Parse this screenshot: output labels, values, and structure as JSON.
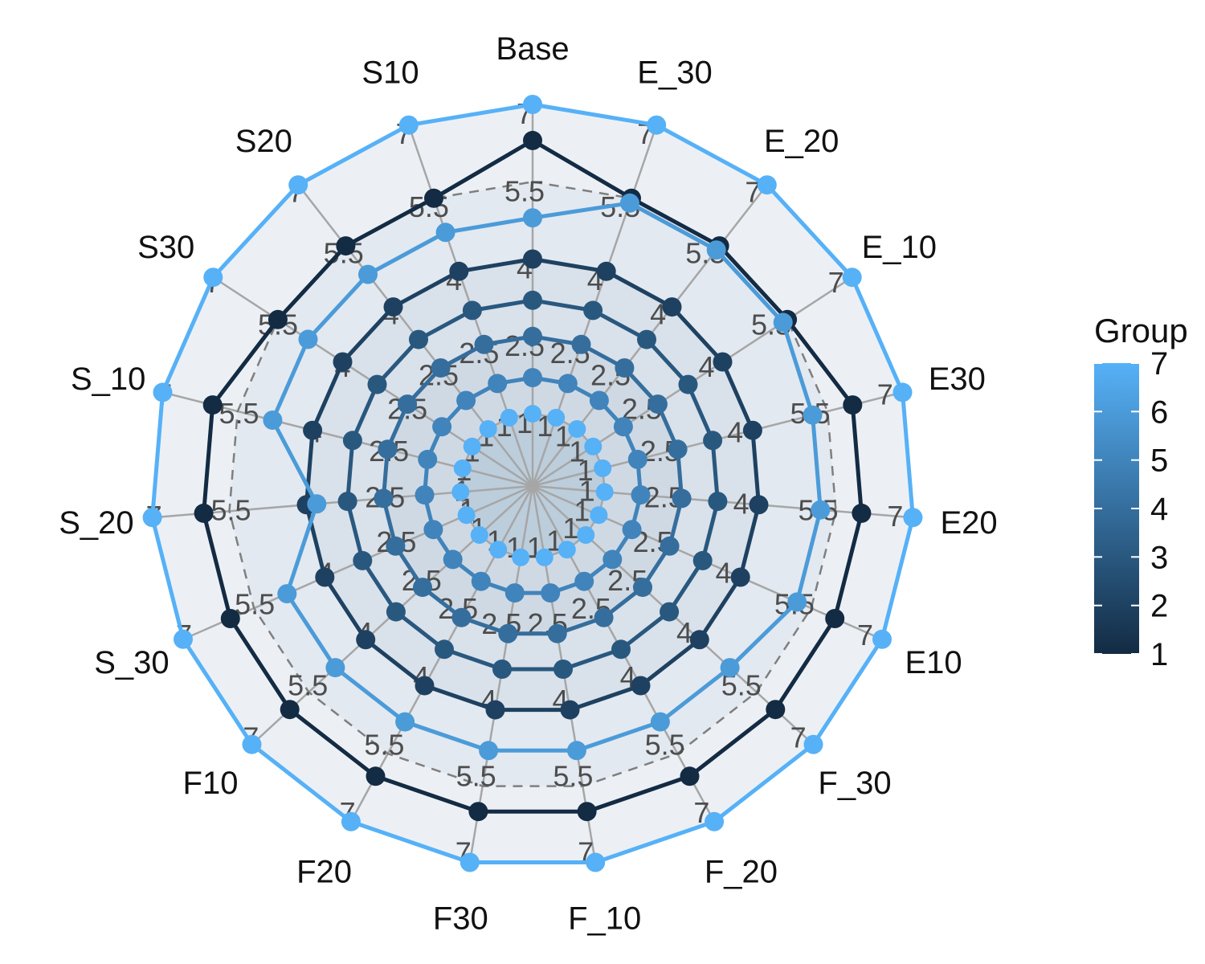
{
  "chart_data": {
    "type": "radar",
    "axes": [
      "Base",
      "E_30",
      "E_20",
      "E_10",
      "E30",
      "E20",
      "E10",
      "F_30",
      "F_20",
      "F_10",
      "F30",
      "F20",
      "F10",
      "S_30",
      "S_20",
      "S_10",
      "S30",
      "S20",
      "S10"
    ],
    "grid_levels": [
      1,
      2.5,
      4,
      5.5,
      7
    ],
    "grid_labels": [
      "1",
      "2.5",
      "4",
      "5.5",
      "7"
    ],
    "dashed_grid_level": 5.5,
    "rlim": [
      0,
      7
    ],
    "series": [
      {
        "group": 1,
        "values": [
          6.3,
          5.5,
          5.5,
          5.5,
          6.0,
          6.0,
          6.0,
          6.0,
          6.0,
          6.0,
          6.0,
          6.0,
          6.0,
          6.0,
          6.0,
          6.0,
          5.5,
          5.5,
          5.5
        ]
      },
      {
        "group": 2,
        "values": [
          4,
          4,
          4,
          4,
          4,
          4,
          4,
          4,
          4,
          4,
          4,
          4,
          4,
          4,
          4,
          4,
          4,
          4,
          4
        ]
      },
      {
        "group": 3,
        "values": [
          3.2,
          3.2,
          3.2,
          3.2,
          3.2,
          3.2,
          3.2,
          3.2,
          3.2,
          3.2,
          3.2,
          3.2,
          3.2,
          3.2,
          3.2,
          3.2,
          3.2,
          3.2,
          3.2
        ]
      },
      {
        "group": 4,
        "values": [
          2.5,
          2.5,
          2.5,
          2.5,
          2.5,
          2.5,
          2.5,
          2.5,
          2.5,
          2.5,
          2.5,
          2.5,
          2.5,
          2.5,
          2.5,
          2.5,
          2.5,
          2.5,
          2.5
        ]
      },
      {
        "group": 5,
        "values": [
          1.7,
          1.7,
          1.7,
          1.7,
          1.7,
          1.7,
          1.7,
          1.7,
          1.7,
          1.7,
          1.7,
          1.7,
          1.7,
          1.7,
          1.7,
          1.7,
          1.7,
          1.7,
          1.7
        ]
      },
      {
        "group": 6,
        "values": [
          4.8,
          5.4,
          5.4,
          5.4,
          5.2,
          5.2,
          5.2,
          4.8,
          4.8,
          4.8,
          4.8,
          4.8,
          4.8,
          4.8,
          3.8,
          4.8,
          4.8,
          4.8,
          4.8
        ]
      },
      {
        "group": 7,
        "values": [
          7,
          7,
          7,
          7,
          7,
          7,
          7,
          7,
          7,
          7,
          7,
          7,
          7,
          7,
          7,
          7,
          7,
          7,
          7
        ]
      }
    ],
    "center_group_value": 1,
    "legend": {
      "title": "Group",
      "ticks": [
        7,
        6,
        5,
        4,
        3,
        2,
        1
      ],
      "low_color": "#132B43",
      "high_color": "#56B1F7",
      "position": "right"
    }
  }
}
